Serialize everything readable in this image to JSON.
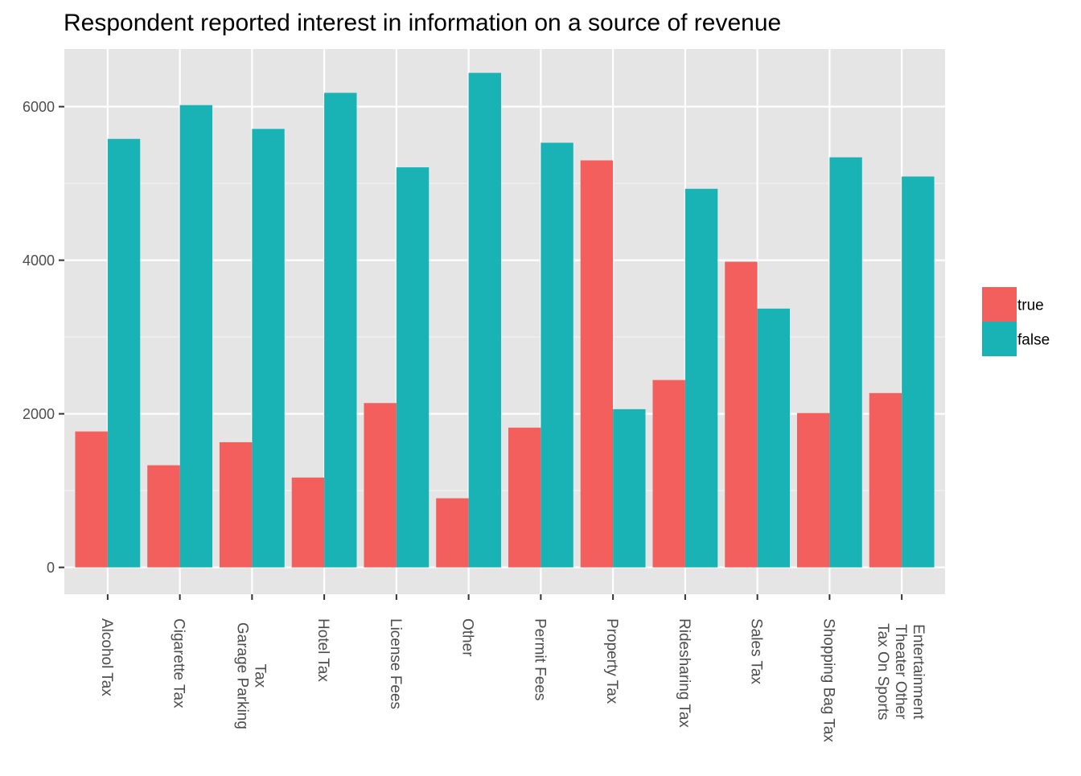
{
  "colors": {
    "panel_background": "#e5e5e5",
    "grid_major": "#ffffff",
    "grid_minor": "#f2f2f2",
    "tick_text": "#4d4d4d",
    "axis_tick": "#333333"
  },
  "chart_data": {
    "type": "bar",
    "title": "Respondent reported interest in information on a source of revenue",
    "xlabel": "",
    "ylabel": "",
    "ylim": [
      -350,
      6750
    ],
    "y_ticks": [
      0,
      2000,
      4000,
      6000
    ],
    "y_tick_labels": [
      "0",
      "2000",
      "4000",
      "6000"
    ],
    "grid": true,
    "legend_position": "right",
    "categories": [
      "Alcohol Tax",
      "Cigarette Tax",
      "Garage Parking Tax",
      "Hotel Tax",
      "License Fees",
      "Other",
      "Permit Fees",
      "Property Tax",
      "Ridesharing Tax",
      "Sales Tax",
      "Shopping Bag Tax",
      "Tax On Sports Theater Other Entertainment"
    ],
    "category_label_lines": [
      [
        "Alcohol Tax"
      ],
      [
        "Cigarette Tax"
      ],
      [
        "Garage Parking",
        "Tax"
      ],
      [
        "Hotel Tax"
      ],
      [
        "License Fees"
      ],
      [
        "Other"
      ],
      [
        "Permit Fees"
      ],
      [
        "Property Tax"
      ],
      [
        "Ridesharing Tax"
      ],
      [
        "Sales Tax"
      ],
      [
        "Shopping Bag Tax"
      ],
      [
        "Tax On Sports",
        "Theater Other",
        "Entertainment"
      ]
    ],
    "series": [
      {
        "name": "true",
        "color": "#f25f5c",
        "values": [
          1770,
          1330,
          1630,
          1170,
          2140,
          900,
          1820,
          5300,
          2440,
          3980,
          2010,
          2270
        ]
      },
      {
        "name": "false",
        "color": "#19b3b6",
        "values": [
          5580,
          6020,
          5710,
          6180,
          5210,
          6440,
          5530,
          2060,
          4930,
          3370,
          5340,
          5090
        ]
      }
    ]
  }
}
